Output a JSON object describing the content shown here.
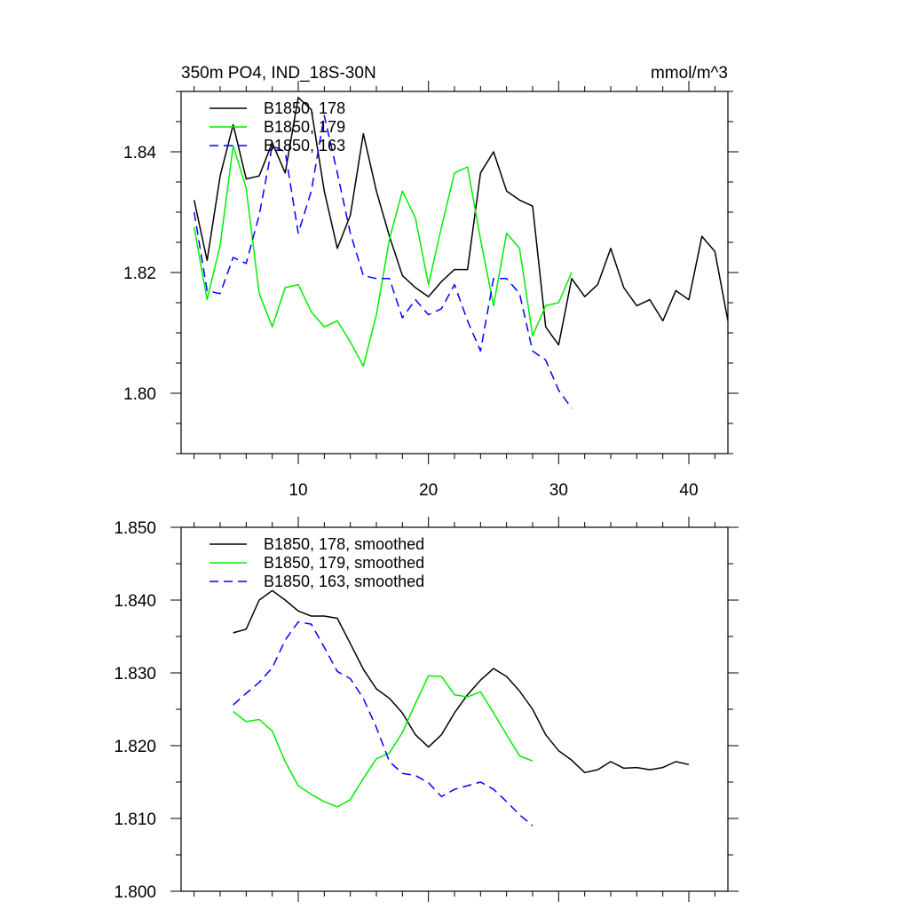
{
  "chart_data": [
    {
      "type": "line",
      "title": "350m PO4, IND_18S-30N",
      "title_right": "mmol/m^3",
      "xlabel": "",
      "ylabel": "",
      "xlim": [
        1,
        43
      ],
      "ylim": [
        1.79,
        1.85
      ],
      "xticks": [
        10,
        20,
        30,
        40
      ],
      "xtick_labels": [
        "10",
        "20",
        "30",
        "40"
      ],
      "yticks": [
        1.8,
        1.82,
        1.84
      ],
      "ytick_labels": [
        "1.80",
        "1.82",
        "1.84"
      ],
      "grid": false,
      "legend_position": "top-left",
      "series": [
        {
          "name": "B1850, 178",
          "color": "#000000",
          "dash": "solid",
          "x": [
            2,
            3,
            4,
            5,
            6,
            7,
            8,
            9,
            10,
            11,
            12,
            13,
            14,
            15,
            16,
            17,
            18,
            19,
            20,
            21,
            22,
            23,
            24,
            25,
            26,
            27,
            28,
            29,
            30,
            31,
            32,
            33,
            34,
            35,
            36,
            37,
            38,
            39,
            40,
            41,
            42,
            43
          ],
          "y": [
            1.832,
            1.822,
            1.836,
            1.8445,
            1.8355,
            1.836,
            1.8415,
            1.8365,
            1.849,
            1.847,
            1.8335,
            1.824,
            1.8295,
            1.843,
            1.8335,
            1.826,
            1.8195,
            1.8175,
            1.816,
            1.8185,
            1.8205,
            1.8205,
            1.8365,
            1.84,
            1.8335,
            1.832,
            1.831,
            1.811,
            1.808,
            1.819,
            1.816,
            1.818,
            1.824,
            1.8175,
            1.8145,
            1.8155,
            1.812,
            1.817,
            1.8155,
            1.826,
            1.8235,
            1.812
          ]
        },
        {
          "name": "B1850, 179",
          "color": "#00ee00",
          "dash": "solid",
          "x": [
            2,
            3,
            4,
            5,
            6,
            7,
            8,
            9,
            10,
            11,
            12,
            13,
            14,
            15,
            16,
            17,
            18,
            19,
            20,
            21,
            22,
            23,
            24,
            25,
            26,
            27,
            28,
            29,
            30,
            31
          ],
          "y": [
            1.8275,
            1.8155,
            1.8245,
            1.841,
            1.834,
            1.8165,
            1.811,
            1.8175,
            1.818,
            1.8135,
            1.811,
            1.812,
            1.8085,
            1.8045,
            1.813,
            1.8255,
            1.8335,
            1.829,
            1.818,
            1.8275,
            1.8365,
            1.8375,
            1.8255,
            1.8145,
            1.8265,
            1.824,
            1.8095,
            1.8145,
            1.815,
            1.82
          ]
        },
        {
          "name": "B1850, 163",
          "color": "#0000ff",
          "dash": "dashed",
          "x": [
            2,
            3,
            4,
            5,
            6,
            7,
            8,
            9,
            10,
            11,
            12,
            13,
            14,
            15,
            16,
            17,
            18,
            19,
            20,
            21,
            22,
            23,
            24,
            25,
            26,
            27,
            28,
            29,
            30,
            31
          ],
          "y": [
            1.83,
            1.817,
            1.8165,
            1.8225,
            1.8215,
            1.8295,
            1.841,
            1.84,
            1.8265,
            1.8335,
            1.846,
            1.8365,
            1.8265,
            1.8195,
            1.819,
            1.819,
            1.8125,
            1.8155,
            1.813,
            1.814,
            1.818,
            1.812,
            1.807,
            1.819,
            1.819,
            1.8165,
            1.807,
            1.8055,
            1.8005,
            1.7975
          ]
        }
      ]
    },
    {
      "type": "line",
      "title": "",
      "xlabel": "",
      "ylabel": "",
      "xlim": [
        1,
        43
      ],
      "ylim": [
        1.8,
        1.85
      ],
      "xticks": [
        10,
        20,
        30,
        40
      ],
      "yticks": [
        1.8,
        1.81,
        1.82,
        1.83,
        1.84,
        1.85
      ],
      "ytick_labels": [
        "1.800",
        "1.810",
        "1.820",
        "1.830",
        "1.840",
        "1.850"
      ],
      "grid": false,
      "legend_position": "top-left",
      "series": [
        {
          "name": "B1850, 178, smoothed",
          "color": "#000000",
          "dash": "solid",
          "x": [
            5,
            6,
            7,
            8,
            9,
            10,
            11,
            12,
            13,
            14,
            15,
            16,
            17,
            18,
            19,
            20,
            21,
            22,
            23,
            24,
            25,
            26,
            27,
            28,
            29,
            30,
            31,
            32,
            33,
            34,
            35,
            36,
            37,
            38,
            39,
            40
          ],
          "y": [
            1.8355,
            1.836,
            1.84,
            1.8413,
            1.84,
            1.8385,
            1.8378,
            1.8378,
            1.8375,
            1.834,
            1.8305,
            1.8278,
            1.8265,
            1.8245,
            1.8215,
            1.8198,
            1.8215,
            1.8245,
            1.827,
            1.829,
            1.8306,
            1.8295,
            1.8275,
            1.825,
            1.8215,
            1.8193,
            1.818,
            1.8163,
            1.8167,
            1.8178,
            1.8169,
            1.817,
            1.8167,
            1.817,
            1.8178,
            1.8174
          ]
        },
        {
          "name": "B1850, 179, smoothed",
          "color": "#00ee00",
          "dash": "solid",
          "x": [
            5,
            6,
            7,
            8,
            9,
            10,
            11,
            12,
            13,
            14,
            15,
            16,
            17,
            18,
            19,
            20,
            21,
            22,
            23,
            24,
            25,
            26,
            27,
            28
          ],
          "y": [
            1.8247,
            1.8233,
            1.8236,
            1.822,
            1.8178,
            1.8145,
            1.8133,
            1.8123,
            1.8116,
            1.8126,
            1.8155,
            1.8182,
            1.819,
            1.8218,
            1.8258,
            1.8296,
            1.8295,
            1.827,
            1.8267,
            1.8274,
            1.8245,
            1.8215,
            1.8186,
            1.8179
          ]
        },
        {
          "name": "B1850, 163, smoothed",
          "color": "#0000ff",
          "dash": "dashed",
          "x": [
            5,
            6,
            7,
            8,
            9,
            10,
            11,
            12,
            13,
            14,
            15,
            16,
            17,
            18,
            19,
            20,
            21,
            22,
            23,
            24,
            25,
            26,
            27,
            28
          ],
          "y": [
            1.8256,
            1.8272,
            1.8287,
            1.8307,
            1.8345,
            1.837,
            1.8367,
            1.8335,
            1.8302,
            1.8292,
            1.8265,
            1.8225,
            1.8178,
            1.8162,
            1.8159,
            1.8149,
            1.813,
            1.814,
            1.8145,
            1.815,
            1.814,
            1.8123,
            1.8105,
            1.809
          ]
        }
      ]
    }
  ]
}
